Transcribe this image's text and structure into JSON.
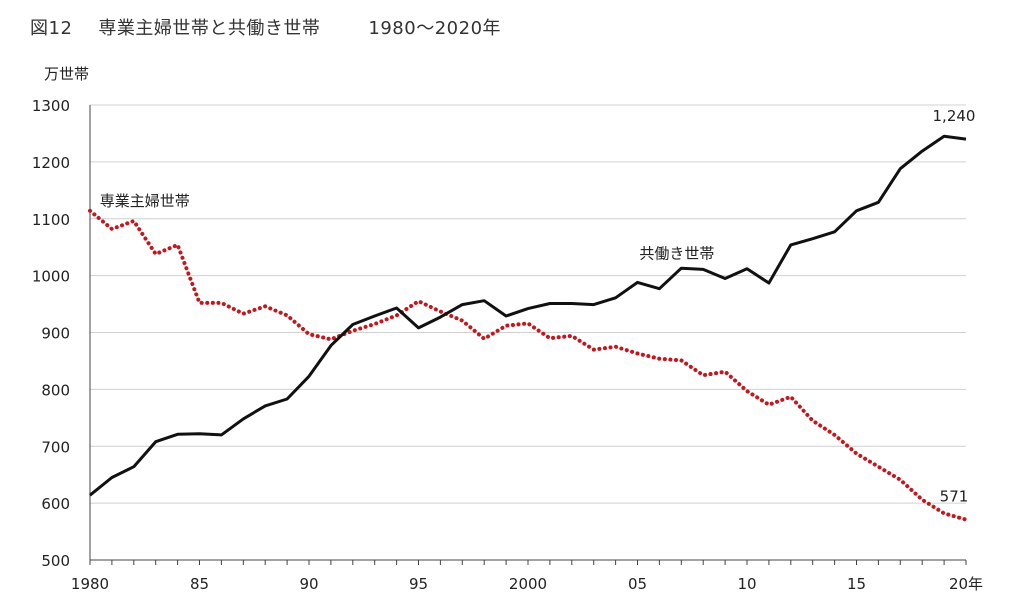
{
  "title": {
    "figure_number": "図12",
    "main": "専業主婦世帯と共働き世帯",
    "period": "1980～2020年"
  },
  "colors": {
    "dual_income": "#111111",
    "housewife": "#c0181e",
    "grid": "#d0d0d0",
    "axis": "#444444"
  },
  "chart_data": {
    "type": "line",
    "title": "専業主婦世帯と共働き世帯",
    "ylabel": "万世帯",
    "xlabel": "",
    "ylim": [
      500,
      1300
    ],
    "xlim": [
      1980,
      2020
    ],
    "grid": true,
    "y_ticks": [
      500,
      600,
      700,
      800,
      900,
      1000,
      1100,
      1200,
      1300
    ],
    "x_ticks": [
      {
        "x": 1980,
        "label": "1980"
      },
      {
        "x": 1985,
        "label": "85"
      },
      {
        "x": 1990,
        "label": "90"
      },
      {
        "x": 1995,
        "label": "95"
      },
      {
        "x": 2000,
        "label": "2000"
      },
      {
        "x": 2005,
        "label": "05"
      },
      {
        "x": 2010,
        "label": "10"
      },
      {
        "x": 2015,
        "label": "15"
      },
      {
        "x": 2020,
        "label": "20年"
      }
    ],
    "x": [
      1980,
      1981,
      1982,
      1983,
      1984,
      1985,
      1986,
      1987,
      1988,
      1989,
      1990,
      1991,
      1992,
      1993,
      1994,
      1995,
      1996,
      1997,
      1998,
      1999,
      2000,
      2001,
      2002,
      2003,
      2004,
      2005,
      2006,
      2007,
      2008,
      2009,
      2010,
      2011,
      2012,
      2013,
      2014,
      2015,
      2016,
      2017,
      2018,
      2019,
      2020
    ],
    "series": [
      {
        "name": "専業主婦世帯",
        "style": "dotted",
        "values": [
          1114,
          1082,
          1096,
          1038,
          1054,
          952,
          952,
          933,
          946,
          930,
          897,
          888,
          903,
          915,
          930,
          955,
          937,
          921,
          889,
          912,
          916,
          890,
          894,
          870,
          875,
          863,
          854,
          851,
          825,
          831,
          797,
          773,
          787,
          745,
          720,
          687,
          664,
          641,
          606,
          582,
          571
        ]
      },
      {
        "name": "共働き世帯",
        "style": "solid",
        "values": [
          614,
          645,
          664,
          708,
          721,
          722,
          720,
          748,
          771,
          783,
          823,
          877,
          914,
          929,
          943,
          908,
          927,
          949,
          956,
          929,
          942,
          951,
          951,
          949,
          961,
          988,
          977,
          1013,
          1011,
          995,
          1012,
          987,
          1054,
          1065,
          1077,
          1114,
          1129,
          1188,
          1219,
          1245,
          1240
        ]
      }
    ],
    "annotations": [
      {
        "text": "1,240",
        "series": "共働き世帯",
        "x": 2020
      },
      {
        "text": "571",
        "series": "専業主婦世帯",
        "x": 2020
      }
    ]
  }
}
